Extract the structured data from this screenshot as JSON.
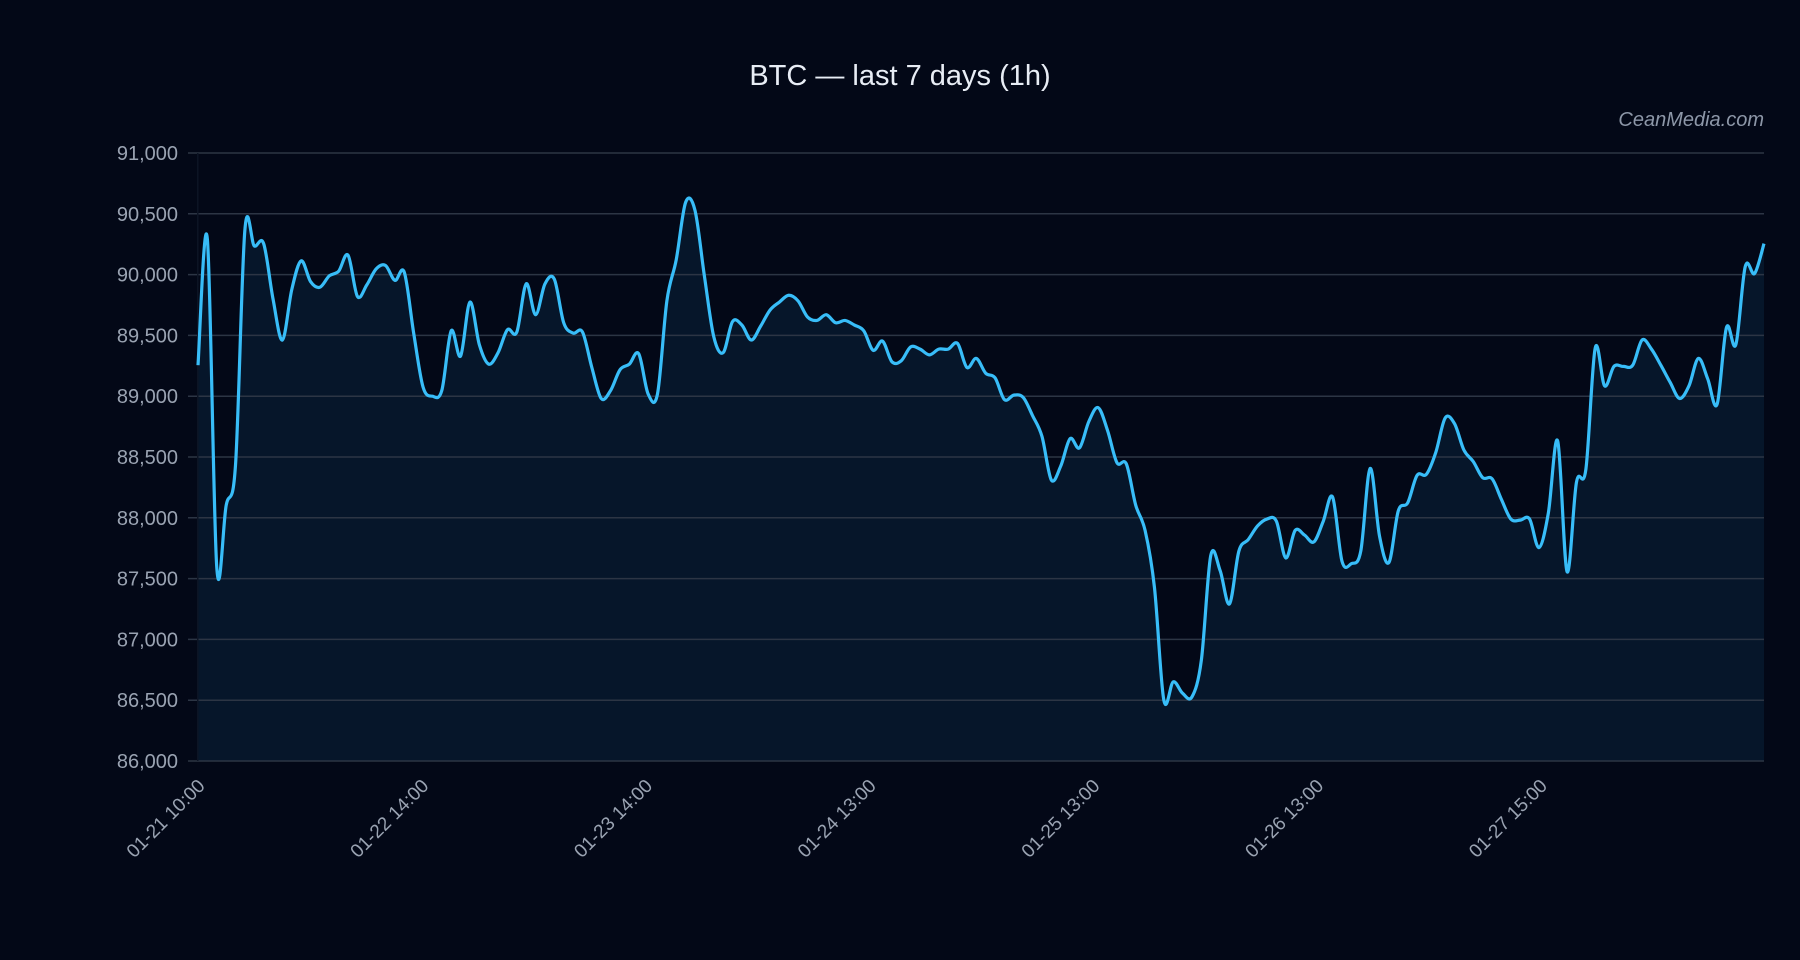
{
  "chart_data": {
    "type": "area",
    "title": "BTC — last 7 days (1h)",
    "watermark": "CeanMedia.com",
    "xlabel": "",
    "ylabel": "",
    "ylim": [
      86000,
      91000
    ],
    "y_ticks": [
      86000,
      86500,
      87000,
      87500,
      88000,
      88500,
      89000,
      89500,
      90000,
      90500,
      91000
    ],
    "y_tick_labels": [
      "86,000",
      "86,500",
      "87,000",
      "87,500",
      "88,000",
      "88,500",
      "89,000",
      "89,500",
      "90,000",
      "90,500",
      "91,000"
    ],
    "x_tick_labels": [
      "01-21 10:00",
      "01-22 14:00",
      "01-23 14:00",
      "01-24 13:00",
      "01-25 13:00",
      "01-26 13:00",
      "01-27 15:00"
    ],
    "grid": true,
    "legend": "none",
    "colors": {
      "line": "#38bdf8",
      "fill": "#06162a",
      "background": "#030817"
    },
    "series": [
      {
        "values": [
          89255,
          90292,
          87594,
          88100,
          88434,
          90368,
          90236,
          90255,
          89800,
          89462,
          89877,
          90113,
          89943,
          89896,
          89990,
          90028,
          90160,
          89821,
          89915,
          90047,
          90075,
          89953,
          90019,
          89519,
          89075,
          89000,
          89047,
          89538,
          89330,
          89774,
          89424,
          89264,
          89358,
          89547,
          89528,
          89924,
          89670,
          89924,
          89962,
          89604,
          89519,
          89528,
          89236,
          88981,
          89047,
          89217,
          89264,
          89349,
          89019,
          89019,
          89783,
          90123,
          90594,
          90528,
          89990,
          89490,
          89358,
          89613,
          89585,
          89462,
          89576,
          89708,
          89774,
          89830,
          89783,
          89651,
          89623,
          89670,
          89604,
          89623,
          89585,
          89538,
          89377,
          89453,
          89283,
          89292,
          89406,
          89387,
          89340,
          89387,
          89387,
          89434,
          89236,
          89311,
          89189,
          89151,
          88972,
          89009,
          88990,
          88840,
          88670,
          88311,
          88425,
          88651,
          88575,
          88792,
          88906,
          88717,
          88453,
          88443,
          88104,
          87896,
          87425,
          86500,
          86651,
          86557,
          86528,
          86830,
          87689,
          87566,
          87292,
          87726,
          87821,
          87934,
          87990,
          87972,
          87670,
          87896,
          87858,
          87802,
          87972,
          88170,
          87642,
          87623,
          87726,
          88406,
          87849,
          87632,
          88057,
          88123,
          88349,
          88358,
          88538,
          88821,
          88774,
          88557,
          88462,
          88330,
          88321,
          88151,
          87990,
          87981,
          87990,
          87755,
          88038,
          88632,
          87557,
          88292,
          88396,
          89396,
          89085,
          89245,
          89245,
          89255,
          89462,
          89387,
          89255,
          89113,
          88981,
          89085,
          89311,
          89142,
          88934,
          89566,
          89425,
          90066,
          90009,
          90255
        ]
      }
    ]
  }
}
